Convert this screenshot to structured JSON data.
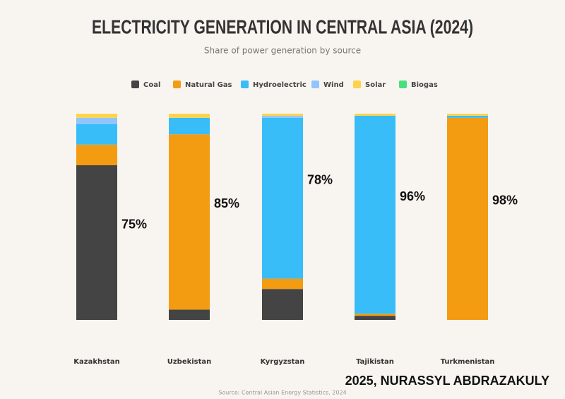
{
  "chart_data": {
    "type": "stacked-bar",
    "title": "ELECTRICITY GENERATION IN CENTRAL ASIA (2024)",
    "subtitle": "Share of power generation by source",
    "source": "Source: Central Asian Energy Statistics, 2024",
    "credit": "2025, NURASSYL ABDRAZAKULY",
    "categories": [
      "Kazakhstan",
      "Uzbekistan",
      "Kyrgyzstan",
      "Tajikistan",
      "Turkmenistan"
    ],
    "ylim": [
      0,
      100
    ],
    "legend": "top",
    "series": [
      {
        "name": "Coal",
        "color": "#444444",
        "values": [
          75,
          5,
          15,
          2,
          0
        ],
        "value_labels": [
          "75%",
          null,
          null,
          null,
          null
        ]
      },
      {
        "name": "Natural Gas",
        "color": "#f39c12",
        "values": [
          10,
          85,
          5,
          1,
          98
        ],
        "value_labels": [
          null,
          "85%",
          null,
          null,
          "98%"
        ]
      },
      {
        "name": "Hydroelectric",
        "color": "#38bdf8",
        "values": [
          10,
          8,
          78,
          96,
          1
        ],
        "value_labels": [
          null,
          null,
          "78%",
          "96%",
          null
        ]
      },
      {
        "name": "Wind",
        "color": "#93c5fd",
        "values": [
          3,
          0,
          1,
          0,
          0
        ]
      },
      {
        "name": "Solar",
        "color": "#fcd34d",
        "values": [
          2,
          2,
          1,
          1,
          1
        ]
      },
      {
        "name": "Biogas",
        "color": "#4ade80",
        "values": [
          0,
          0,
          0,
          0,
          0
        ]
      }
    ]
  }
}
